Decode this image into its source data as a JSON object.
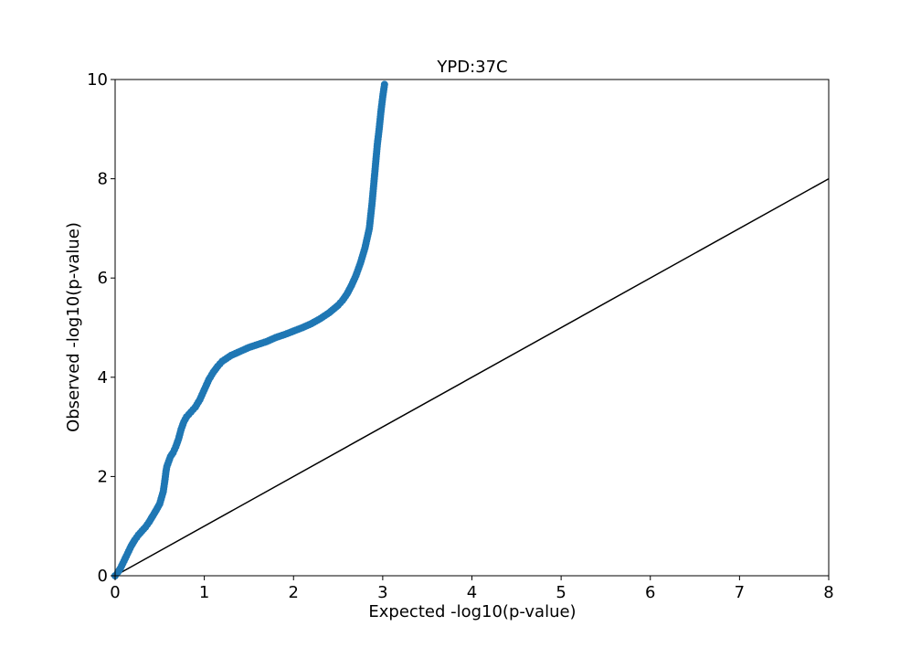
{
  "chart_data": {
    "type": "scatter",
    "title": "YPD:37C",
    "xlabel": "Expected -log10(p-value)",
    "ylabel": "Observed -log10(p-value)",
    "xlim": [
      0,
      8
    ],
    "ylim": [
      0,
      10
    ],
    "xticks": [
      "0",
      "1",
      "2",
      "3",
      "4",
      "5",
      "6",
      "7",
      "8"
    ],
    "yticks": [
      "0",
      "2",
      "4",
      "6",
      "8",
      "10"
    ],
    "grid": false,
    "colors": {
      "points": "#1f77b4",
      "reference_line": "#000000"
    },
    "reference_line": {
      "x": [
        0,
        8
      ],
      "y": [
        0,
        8
      ]
    },
    "series": [
      {
        "x": [
          0.0,
          0.03,
          0.06,
          0.1,
          0.14,
          0.18,
          0.22,
          0.26,
          0.3,
          0.34,
          0.38,
          0.42,
          0.46,
          0.5,
          0.54,
          0.56,
          0.57,
          0.58,
          0.6,
          0.62,
          0.65,
          0.68,
          0.71,
          0.74,
          0.77,
          0.8,
          0.85,
          0.9,
          0.95,
          1.0,
          1.05,
          1.1,
          1.15,
          1.2,
          1.3,
          1.4,
          1.5,
          1.6,
          1.7,
          1.8,
          1.9,
          2.0,
          2.1,
          2.2,
          2.3,
          2.4,
          2.5,
          2.55,
          2.6,
          2.65,
          2.7,
          2.75,
          2.8,
          2.85,
          2.88,
          2.9,
          2.92,
          2.94,
          2.96,
          2.98,
          3.0,
          3.02
        ],
        "y": [
          0.0,
          0.07,
          0.15,
          0.3,
          0.45,
          0.6,
          0.72,
          0.82,
          0.9,
          0.98,
          1.08,
          1.2,
          1.32,
          1.45,
          1.7,
          1.95,
          2.1,
          2.2,
          2.3,
          2.4,
          2.48,
          2.6,
          2.75,
          2.95,
          3.1,
          3.2,
          3.3,
          3.4,
          3.55,
          3.75,
          3.95,
          4.1,
          4.22,
          4.32,
          4.44,
          4.52,
          4.6,
          4.66,
          4.72,
          4.8,
          4.86,
          4.93,
          5.0,
          5.08,
          5.18,
          5.3,
          5.45,
          5.55,
          5.68,
          5.85,
          6.05,
          6.3,
          6.6,
          7.0,
          7.5,
          7.9,
          8.3,
          8.7,
          9.0,
          9.35,
          9.65,
          9.9
        ]
      }
    ]
  }
}
